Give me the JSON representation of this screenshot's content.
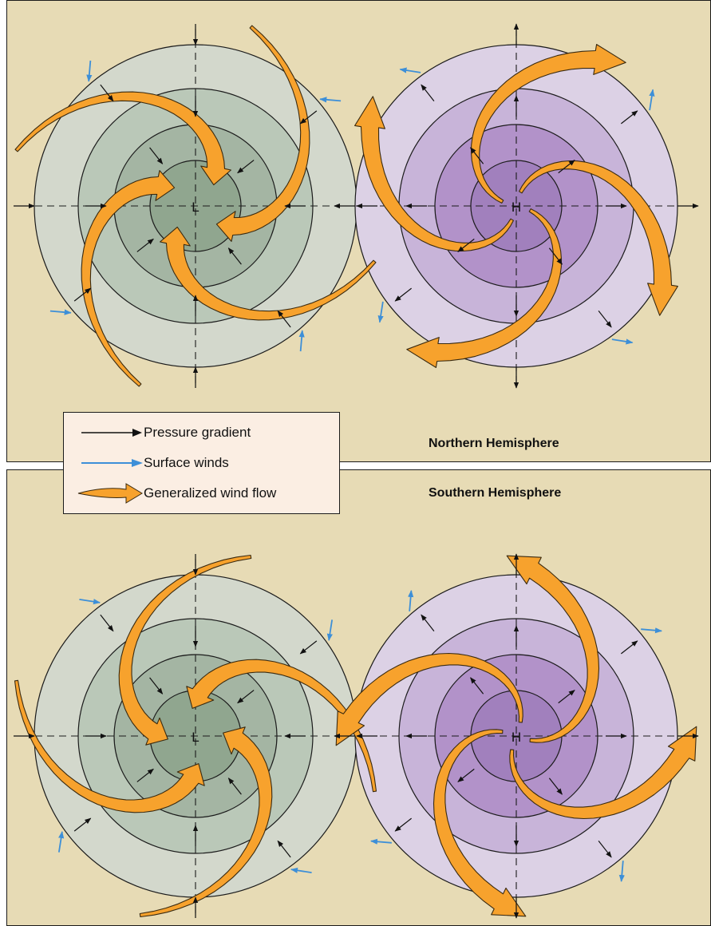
{
  "north": {
    "low_center_label": "L",
    "high_center_label": "H",
    "hemisphere_label": "Northern Hemisphere"
  },
  "south": {
    "low_center_label": "L",
    "high_center_label": "H",
    "hemisphere_label": "Southern Hemisphere"
  },
  "legend": {
    "items": [
      {
        "label": "Pressure gradient",
        "symbol": "thin-arrow",
        "color": "#111111"
      },
      {
        "label": "Surface winds",
        "symbol": "thin-arrow",
        "color": "#3d8fd8"
      },
      {
        "label": "Generalized wind flow",
        "symbol": "broad-arrow",
        "color": "#f7a22d"
      }
    ]
  },
  "colors": {
    "background": "#e7dbb5",
    "low_outer": "#d3d8cc",
    "low_mid": "#bac8b8",
    "low_inner": "#a4b5a3",
    "low_core": "#90a68f",
    "high_outer": "#dcd1e5",
    "high_mid": "#c8b4d9",
    "high_inner": "#b292c9",
    "high_core": "#a180bd",
    "pressure_gradient_arrow": "#111111",
    "surface_wind_arrow": "#3d8fd8",
    "wind_flow": "#f7a22d"
  }
}
